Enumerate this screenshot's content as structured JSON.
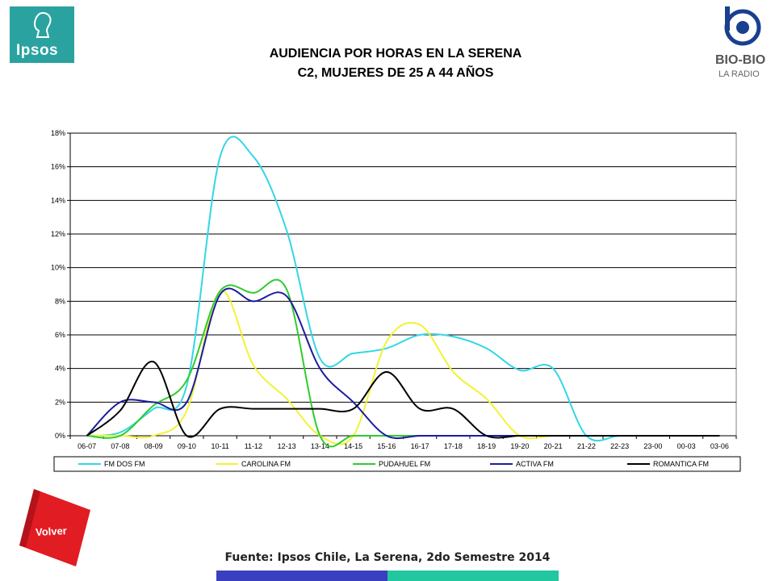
{
  "header": {
    "title_line1": "AUDIENCIA POR HORAS EN LA SERENA",
    "title_line2": "C2, MUJERES DE 25 A 44 AÑOS"
  },
  "logos": {
    "left": "Ipsos",
    "right_line1": "BIO-BIO",
    "right_line2": "LA RADIO"
  },
  "volver_label": "Volver",
  "source": "Fuente: Ipsos Chile, La Serena, 2do Semestre 2014",
  "colors": {
    "ipsos_teal": "#2aa3a0",
    "volver_red": "#e21c23",
    "bar_blue": "#3a3fbf",
    "bar_teal": "#22c7a0"
  },
  "chart_data": {
    "type": "line",
    "ylim": [
      0,
      18
    ],
    "y_ticks": [
      "0%",
      "2%",
      "4%",
      "6%",
      "8%",
      "10%",
      "12%",
      "14%",
      "16%",
      "18%"
    ],
    "grid": true,
    "legend_position": "bottom",
    "categories": [
      "06-07",
      "07-08",
      "08-09",
      "09-10",
      "10-11",
      "11-12",
      "12-13",
      "13-14",
      "14-15",
      "15-16",
      "16-17",
      "17-18",
      "18-19",
      "19-20",
      "20-21",
      "21-22",
      "22-23",
      "23-00",
      "00-03",
      "03-06"
    ],
    "series": [
      {
        "name": "FM DOS FM",
        "color": "#33d6e6",
        "values": [
          0,
          0.2,
          1.6,
          3.0,
          16.6,
          16.6,
          12.2,
          4.6,
          4.9,
          5.2,
          6.0,
          5.9,
          5.2,
          3.9,
          4.0,
          0,
          0,
          0,
          0,
          0
        ]
      },
      {
        "name": "CAROLINA FM",
        "color": "#f2f235",
        "values": [
          0,
          0,
          0,
          1.5,
          8.6,
          4.2,
          2.2,
          0,
          0,
          5.6,
          6.6,
          3.8,
          2.2,
          0,
          0,
          0,
          0,
          0,
          0,
          0
        ]
      },
      {
        "name": "PUDAHUEL FM",
        "color": "#2ecc2e",
        "values": [
          0,
          0,
          1.8,
          3.3,
          8.6,
          8.5,
          8.7,
          0,
          0,
          0,
          0,
          0,
          0,
          0,
          0,
          0,
          0,
          0,
          0,
          0
        ]
      },
      {
        "name": "ACTIVA FM",
        "color": "#1c1ca0",
        "values": [
          0,
          2.0,
          2.0,
          2.0,
          8.4,
          8.0,
          8.3,
          4.0,
          2.0,
          0,
          0,
          0,
          0,
          0,
          0,
          0,
          0,
          0,
          0,
          0
        ]
      },
      {
        "name": "ROMANTICA FM",
        "color": "#000000",
        "values": [
          0,
          1.5,
          4.4,
          0,
          1.6,
          1.6,
          1.6,
          1.6,
          1.6,
          3.8,
          1.6,
          1.6,
          0,
          0,
          0,
          0,
          0,
          0,
          0,
          0
        ]
      }
    ]
  }
}
